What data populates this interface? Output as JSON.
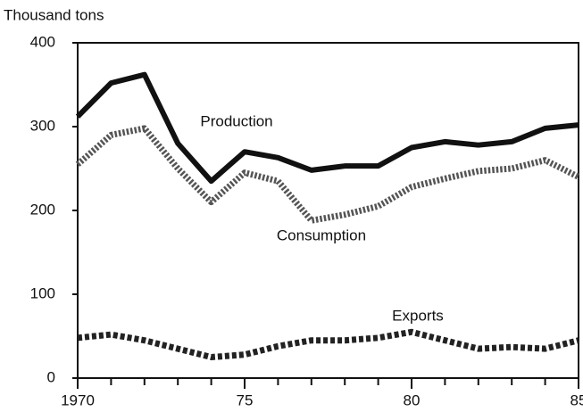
{
  "chart_data": {
    "type": "line",
    "y_label": "Thousand tons",
    "x": [
      1970,
      1971,
      1972,
      1973,
      1974,
      1975,
      1976,
      1977,
      1978,
      1979,
      1980,
      1981,
      1982,
      1983,
      1984,
      1985
    ],
    "series": [
      {
        "name": "Production",
        "color": "#111111",
        "style": "solid",
        "values": [
          312,
          352,
          362,
          280,
          235,
          270,
          263,
          248,
          253,
          253,
          275,
          282,
          278,
          282,
          298,
          302
        ]
      },
      {
        "name": "Consumption",
        "color": "#555555",
        "style": "dotted",
        "values": [
          255,
          290,
          298,
          250,
          210,
          245,
          235,
          188,
          195,
          205,
          228,
          238,
          247,
          250,
          260,
          240
        ]
      },
      {
        "name": "Exports",
        "color": "#222222",
        "style": "dashed",
        "values": [
          48,
          52,
          45,
          35,
          25,
          28,
          38,
          45,
          45,
          48,
          55,
          45,
          35,
          37,
          35,
          45
        ]
      }
    ],
    "xlim": [
      1970,
      1985
    ],
    "xticks": [
      1970,
      {
        "value": 1975,
        "label": "75"
      },
      {
        "value": 1980,
        "label": "80"
      },
      {
        "value": 1985,
        "label": "85"
      }
    ],
    "ylim": [
      0,
      400
    ],
    "yticks": [
      0,
      100,
      200,
      300,
      400
    ],
    "grid": false
  }
}
